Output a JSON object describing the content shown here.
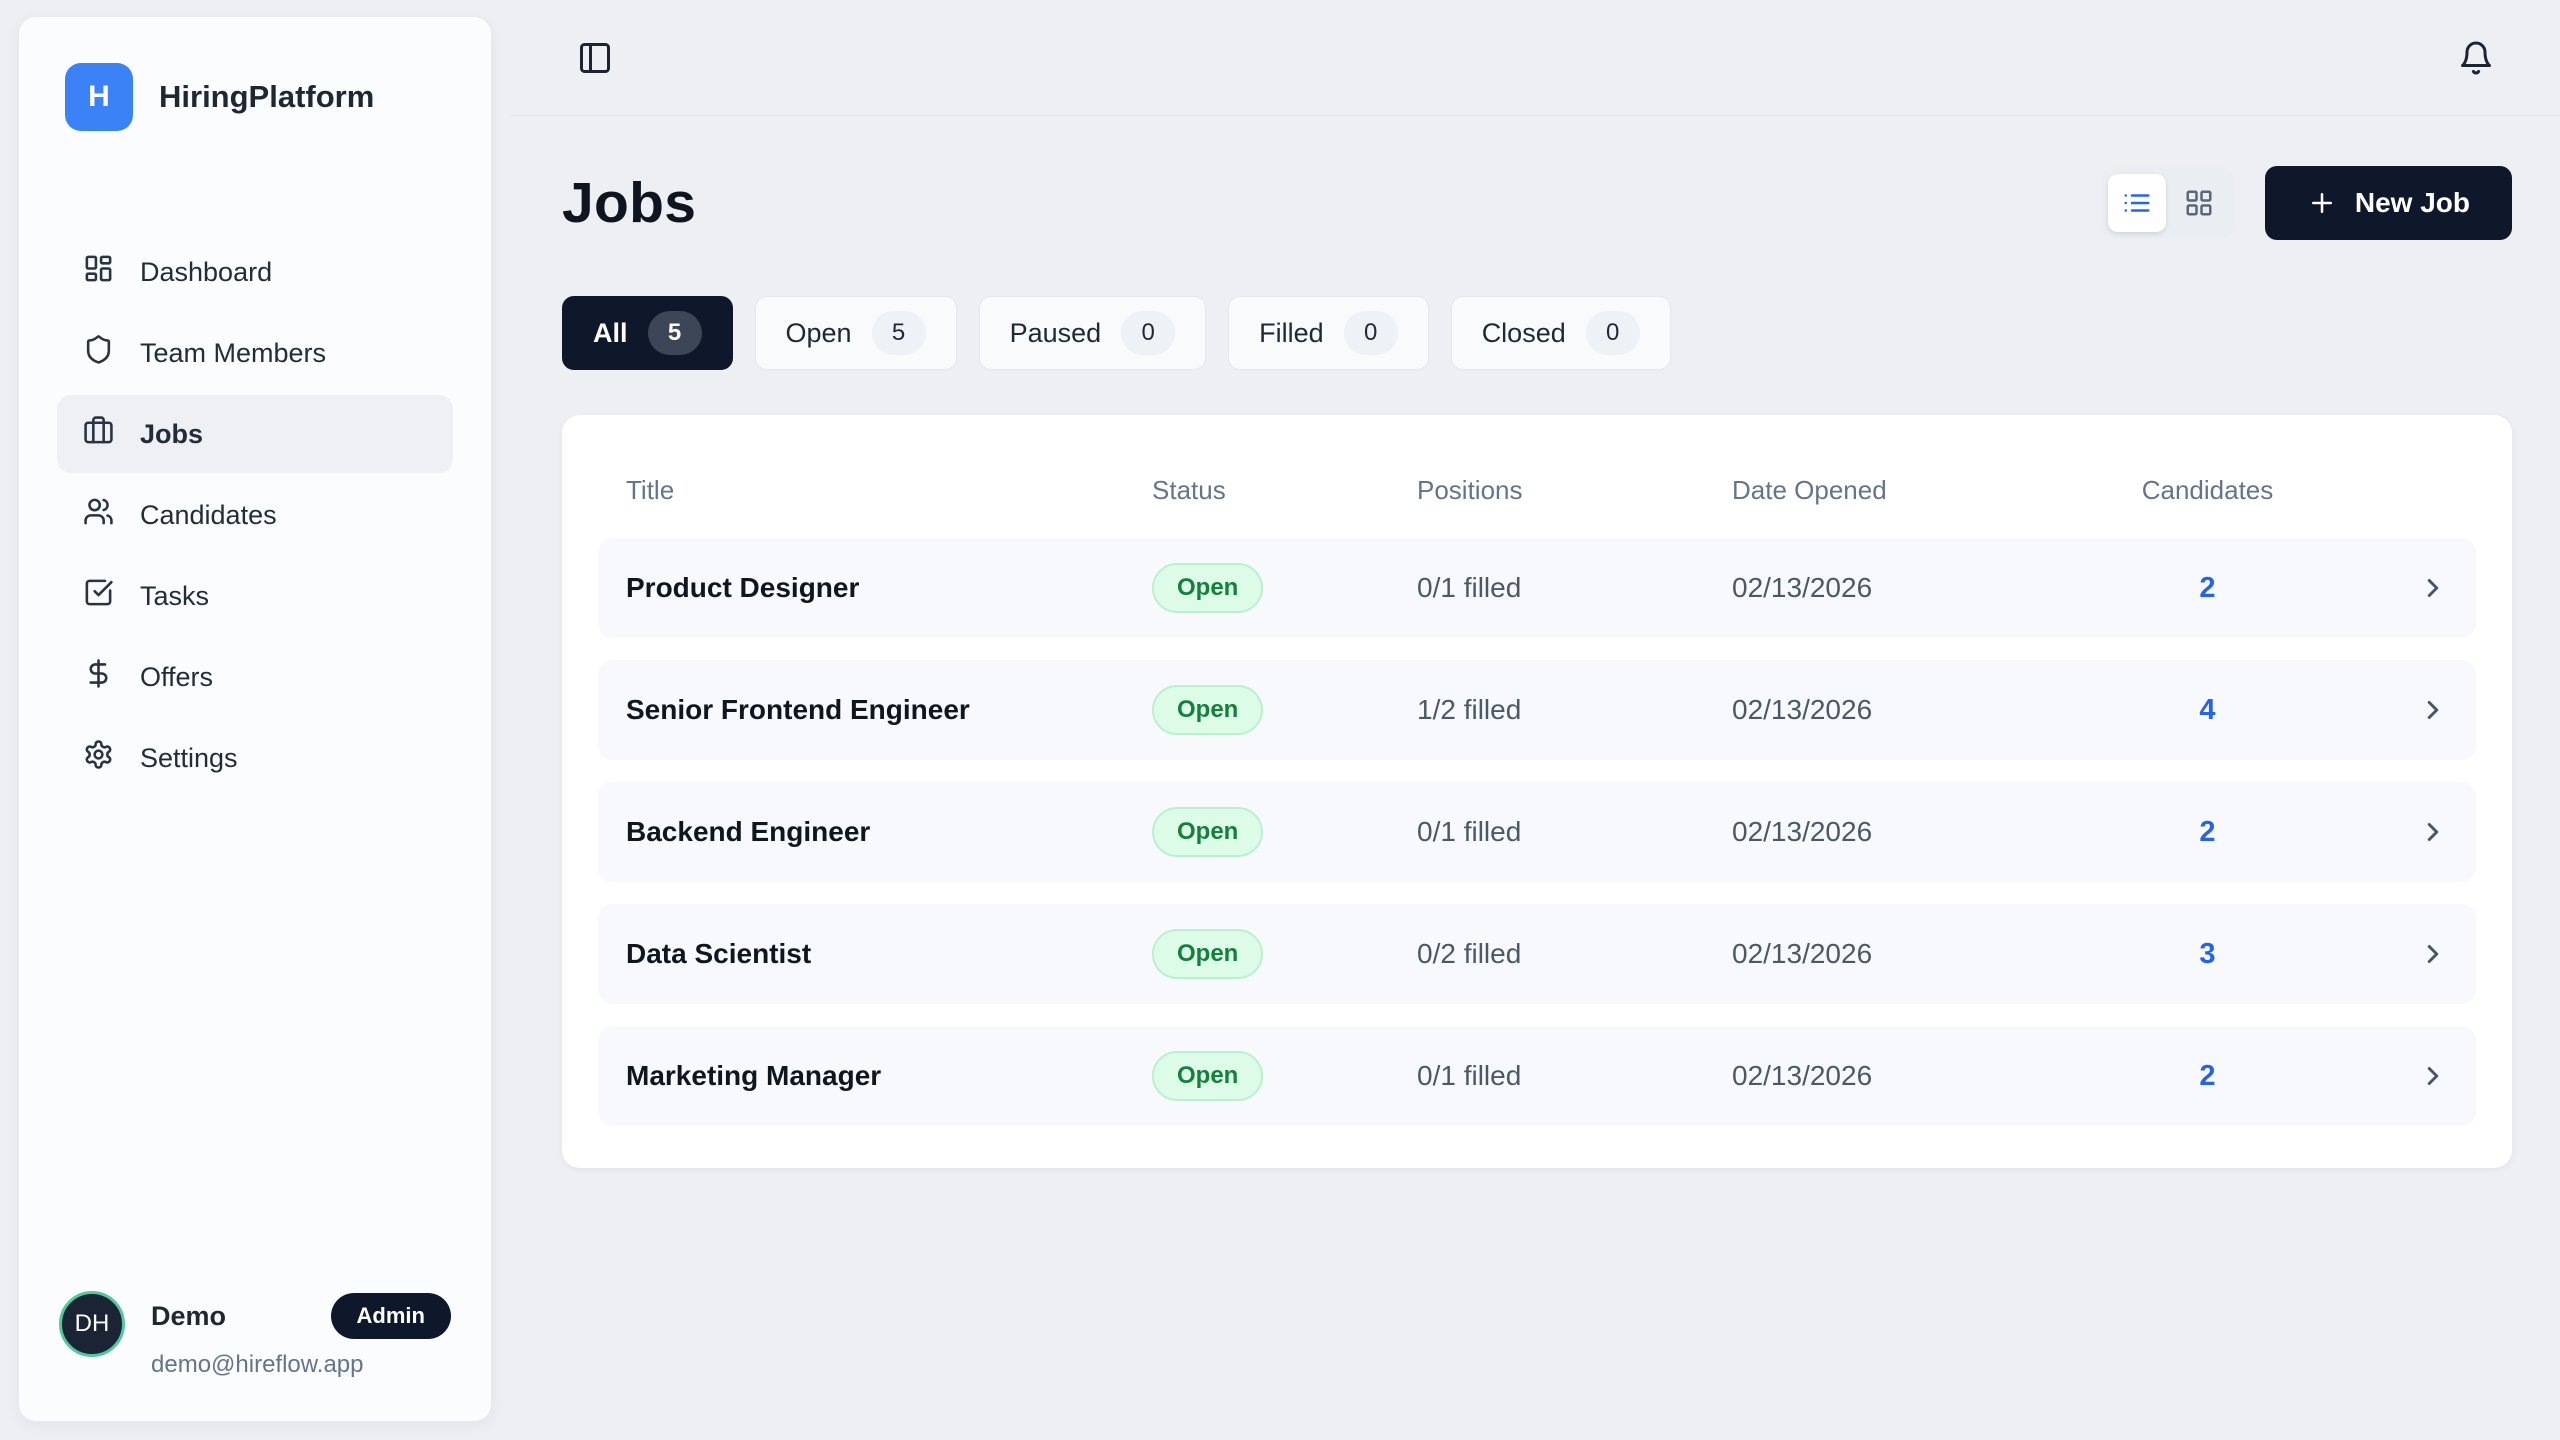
{
  "colors": {
    "accent_blue": "#3b82f6",
    "link_blue": "#2563eb",
    "navy": "#0f172a",
    "green_badge_bg": "#dcfce7",
    "green_badge_text": "#15803d"
  },
  "app": {
    "name": "HiringPlatform",
    "logo_letter": "H"
  },
  "sidebar": {
    "items": [
      {
        "label": "Dashboard",
        "icon": "dashboard-icon",
        "active": false
      },
      {
        "label": "Team Members",
        "icon": "shield-icon",
        "active": false
      },
      {
        "label": "Jobs",
        "icon": "briefcase-icon",
        "active": true
      },
      {
        "label": "Candidates",
        "icon": "users-icon",
        "active": false
      },
      {
        "label": "Tasks",
        "icon": "square-check-icon",
        "active": false
      },
      {
        "label": "Offers",
        "icon": "dollar-icon",
        "active": false
      },
      {
        "label": "Settings",
        "icon": "gear-icon",
        "active": false
      }
    ],
    "user": {
      "initials": "DH",
      "name": "Demo",
      "role": "Admin",
      "email": "demo@hireflow.app"
    }
  },
  "main": {
    "title": "Jobs",
    "new_job": {
      "label": "New Job"
    },
    "filters": [
      {
        "label": "All",
        "count": 5,
        "active": true
      },
      {
        "label": "Open",
        "count": 5,
        "active": false
      },
      {
        "label": "Paused",
        "count": 0,
        "active": false
      },
      {
        "label": "Filled",
        "count": 0,
        "active": false
      },
      {
        "label": "Closed",
        "count": 0,
        "active": false
      }
    ],
    "table": {
      "columns": [
        "Title",
        "Status",
        "Positions",
        "Date Opened",
        "Candidates"
      ],
      "rows": [
        {
          "title": "Product Designer",
          "status": "Open",
          "positions": "0/1 filled",
          "date_opened": "02/13/2026",
          "candidates": 2
        },
        {
          "title": "Senior Frontend Engineer",
          "status": "Open",
          "positions": "1/2 filled",
          "date_opened": "02/13/2026",
          "candidates": 4
        },
        {
          "title": "Backend Engineer",
          "status": "Open",
          "positions": "0/1 filled",
          "date_opened": "02/13/2026",
          "candidates": 2
        },
        {
          "title": "Data Scientist",
          "status": "Open",
          "positions": "0/2 filled",
          "date_opened": "02/13/2026",
          "candidates": 3
        },
        {
          "title": "Marketing Manager",
          "status": "Open",
          "positions": "0/1 filled",
          "date_opened": "02/13/2026",
          "candidates": 2
        }
      ]
    }
  }
}
